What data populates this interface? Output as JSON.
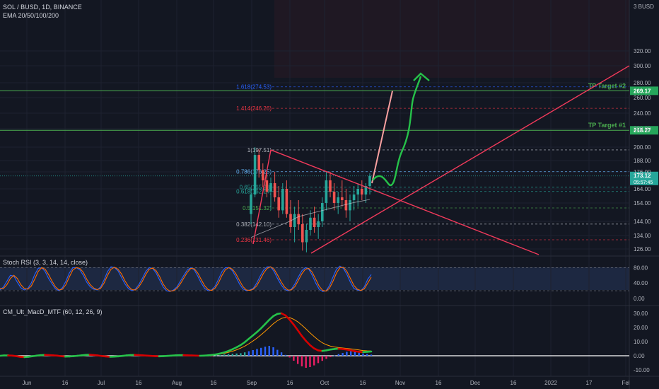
{
  "header": {
    "symbol_line": "SOL / BUSD, 1D, BINANCE",
    "indicator_line": "EMA 20/50/100/200",
    "currency": "3 BUSD"
  },
  "colors": {
    "background": "#131722",
    "grid": "#1e2230",
    "up_candle": "#26a69a",
    "down_candle": "#ef5350",
    "trendline": "#f23a5b",
    "tp_line": "#4caf50",
    "arrow": "#26c24a",
    "fib_dash": "#787b86"
  },
  "chart_data": [
    {
      "type": "candlestick",
      "name": "price_pane",
      "y_axis": {
        "ticks": [
          126.0,
          134.0,
          144.0,
          154.0,
          164.0,
          176.0,
          188.0,
          200.0,
          220.0,
          240.0,
          260.0,
          280.0,
          300.0,
          320.0
        ],
        "tick_labels": [
          "126.00",
          "134.00",
          "144.00",
          "154.00",
          "164.00",
          "176.00",
          "188.00",
          "200.00",
          "220.00",
          "240.00",
          "260.00",
          "280.00",
          "300.00",
          "320.00"
        ]
      },
      "x_axis": {
        "tick_labels": [
          "Jun",
          "16",
          "Jul",
          "16",
          "Aug",
          "16",
          "Sep",
          "16",
          "Oct",
          "16",
          "Nov",
          "16",
          "Dec",
          "16",
          "2022",
          "17",
          "Fel"
        ]
      },
      "current_price": "173.12",
      "countdown": "05:57:45",
      "tp_targets": [
        {
          "label": "TP Target #2",
          "value": 269.17,
          "value_label": "269.17"
        },
        {
          "label": "TP Target #1",
          "value": 218.27,
          "value_label": "218.27"
        }
      ],
      "fib_levels": [
        {
          "label": "1.618(274.53)",
          "value": 274.53,
          "color": "#2962ff"
        },
        {
          "label": "1.414(246.26)",
          "value": 246.26,
          "color": "#f23645"
        },
        {
          "label": "1(197.51)",
          "value": 197.51,
          "color": "#b2b5be"
        },
        {
          "label": "0.786(176.25)",
          "value": 176.25,
          "color": "#64b5f6"
        },
        {
          "label": "0.65(165.28)",
          "value": 165.28,
          "color": "#26a69a"
        },
        {
          "label": "0.618(162.14)",
          "value": 162.14,
          "color": "#26a69a"
        },
        {
          "label": "0.5(151.32)",
          "value": 151.32,
          "color": "#4caf50"
        },
        {
          "label": "0.382(142.10)",
          "value": 142.1,
          "color": "#b2b5be"
        },
        {
          "label": "0.236(131.46)",
          "value": 131.46,
          "color": "#f23645"
        }
      ],
      "candles": [
        {
          "o": 148,
          "h": 165,
          "l": 142,
          "c": 160
        },
        {
          "o": 160,
          "h": 200,
          "l": 158,
          "c": 193
        },
        {
          "o": 193,
          "h": 198,
          "l": 172,
          "c": 178
        },
        {
          "o": 178,
          "h": 185,
          "l": 165,
          "c": 170
        },
        {
          "o": 170,
          "h": 178,
          "l": 158,
          "c": 162
        },
        {
          "o": 162,
          "h": 172,
          "l": 150,
          "c": 168
        },
        {
          "o": 168,
          "h": 176,
          "l": 155,
          "c": 158
        },
        {
          "o": 158,
          "h": 166,
          "l": 146,
          "c": 150
        },
        {
          "o": 150,
          "h": 168,
          "l": 148,
          "c": 164
        },
        {
          "o": 164,
          "h": 170,
          "l": 146,
          "c": 148
        },
        {
          "o": 148,
          "h": 156,
          "l": 136,
          "c": 140
        },
        {
          "o": 140,
          "h": 152,
          "l": 130,
          "c": 148
        },
        {
          "o": 148,
          "h": 156,
          "l": 138,
          "c": 142
        },
        {
          "o": 142,
          "h": 148,
          "l": 125,
          "c": 130
        },
        {
          "o": 130,
          "h": 142,
          "l": 124,
          "c": 138
        },
        {
          "o": 138,
          "h": 150,
          "l": 134,
          "c": 146
        },
        {
          "o": 146,
          "h": 152,
          "l": 136,
          "c": 140
        },
        {
          "o": 140,
          "h": 148,
          "l": 132,
          "c": 144
        },
        {
          "o": 144,
          "h": 158,
          "l": 140,
          "c": 154
        },
        {
          "o": 154,
          "h": 176,
          "l": 150,
          "c": 170
        },
        {
          "o": 170,
          "h": 176,
          "l": 158,
          "c": 162
        },
        {
          "o": 162,
          "h": 168,
          "l": 150,
          "c": 154
        },
        {
          "o": 154,
          "h": 162,
          "l": 148,
          "c": 158
        },
        {
          "o": 158,
          "h": 170,
          "l": 152,
          "c": 156
        },
        {
          "o": 156,
          "h": 164,
          "l": 146,
          "c": 150
        },
        {
          "o": 150,
          "h": 160,
          "l": 144,
          "c": 156
        },
        {
          "o": 156,
          "h": 166,
          "l": 150,
          "c": 160
        },
        {
          "o": 160,
          "h": 168,
          "l": 152,
          "c": 164
        },
        {
          "o": 164,
          "h": 170,
          "l": 156,
          "c": 160
        },
        {
          "o": 160,
          "h": 168,
          "l": 154,
          "c": 166
        },
        {
          "o": 166,
          "h": 175,
          "l": 160,
          "c": 173.12
        }
      ]
    },
    {
      "type": "line",
      "name": "Stoch RSI (3, 3, 14, 14, close)",
      "y_axis": {
        "ticks": [
          0,
          40,
          80
        ],
        "tick_labels": [
          "0.00",
          "40.00",
          "80.00"
        ]
      },
      "bands": [
        20,
        80
      ],
      "series": [
        {
          "values": [
            22,
            30,
            45,
            60,
            58,
            42,
            28,
            22,
            26,
            40,
            62,
            78,
            80,
            70,
            52,
            38,
            25,
            20,
            28,
            45,
            66,
            80,
            80,
            74,
            60,
            42,
            30,
            24,
            22,
            30,
            48,
            70,
            82,
            80,
            72,
            55,
            38,
            26,
            20,
            24,
            36,
            52,
            70,
            80,
            78,
            66,
            48,
            30,
            20,
            18,
            22,
            30,
            45,
            60,
            74,
            80,
            74,
            58,
            40,
            26,
            20,
            22,
            32,
            50,
            70,
            80,
            80,
            72,
            56,
            38,
            25,
            20,
            22,
            26,
            40,
            58,
            74,
            82,
            82,
            70,
            52,
            36,
            24,
            20,
            24,
            38,
            56,
            72,
            80,
            76,
            60,
            40,
            24,
            18,
            20,
            34,
            56,
            76,
            84,
            78,
            62,
            42,
            26,
            22,
            20,
            30,
            50,
            62
          ]
        },
        {
          "values": [
            26,
            26,
            36,
            52,
            60,
            52,
            36,
            26,
            24,
            32,
            50,
            70,
            80,
            76,
            62,
            45,
            30,
            22,
            24,
            36,
            56,
            74,
            80,
            78,
            68,
            50,
            36,
            27,
            23,
            26,
            40,
            60,
            76,
            81,
            76,
            64,
            46,
            32,
            23,
            22,
            30,
            44,
            62,
            76,
            79,
            72,
            57,
            38,
            25,
            19,
            20,
            26,
            38,
            53,
            68,
            78,
            77,
            66,
            49,
            33,
            23,
            21,
            27,
            41,
            60,
            75,
            80,
            76,
            64,
            47,
            31,
            22,
            21,
            24,
            33,
            49,
            66,
            78,
            82,
            76,
            61,
            44,
            30,
            22,
            22,
            31,
            47,
            64,
            76,
            78,
            68,
            50,
            32,
            21,
            19,
            27,
            45,
            66,
            80,
            81,
            70,
            52,
            34,
            24,
            21,
            25,
            40,
            55
          ]
        }
      ]
    },
    {
      "type": "bar",
      "name": "CM_Ult_MacD_MTF (60, 12, 26, 9)",
      "y_axis": {
        "ticks": [
          -10,
          0,
          10,
          20,
          30
        ],
        "tick_labels": [
          "-10.00",
          "0.00",
          "10.00",
          "20.00",
          "30.00"
        ]
      },
      "series": [
        {
          "name": "histogram",
          "values": [
            0.3,
            0.6,
            0.9,
            0.7,
            0.3,
            -0.3,
            -0.6,
            -0.8,
            -0.5,
            -0.2,
            0.2,
            0.4,
            0.6,
            0.5,
            0.2,
            -0.2,
            -0.5,
            -0.6,
            -0.4,
            -0.1,
            0.2,
            0.5,
            0.8,
            0.6,
            0.3,
            -0.1,
            -0.4,
            -0.7,
            -0.9,
            -0.6,
            -0.3,
            0.2,
            0.5,
            0.7,
            0.5,
            0.3,
            0.1,
            -0.2,
            -0.4,
            -0.6,
            -0.4,
            -0.2,
            0.1,
            0.4,
            0.6,
            0.5,
            0.3,
            0.1,
            -0.1,
            -0.3,
            -0.4,
            -0.3,
            -0.1,
            0.2,
            0.5,
            0.9,
            1.2,
            1.4,
            1.6,
            1.8,
            2.4,
            3.2,
            4.0,
            4.8,
            5.6,
            6.4,
            7.0,
            6.0,
            4.2,
            2.4,
            0.6,
            -1.2,
            -3.5,
            -5.8,
            -7.5,
            -8.5,
            -8.0,
            -6.8,
            -5.2,
            -3.6,
            -2.2,
            -1.0,
            0.2,
            1.2,
            2.0,
            2.8,
            3.2,
            2.8,
            2.2,
            1.6,
            1.2,
            0.8
          ]
        },
        {
          "name": "macd",
          "values": [
            0.0,
            0.2,
            0.2,
            0.1,
            -0.3,
            -0.8,
            -1.0,
            -0.7,
            -0.3,
            0.1,
            0.4,
            0.6,
            0.5,
            0.3,
            0.1,
            -0.3,
            -0.6,
            -0.5,
            -0.3,
            0.0,
            0.3,
            0.6,
            0.7,
            0.5,
            0.2,
            -0.2,
            -0.5,
            -0.7,
            -0.6,
            -0.4,
            -0.1,
            0.2,
            0.5,
            0.6,
            0.5,
            0.3,
            0.1,
            -0.1,
            -0.3,
            -0.4,
            -0.3,
            -0.1,
            0.1,
            0.3,
            0.4,
            0.4,
            0.3,
            0.2,
            0.1,
            0.0,
            0.1,
            0.3,
            0.6,
            1.0,
            1.6,
            2.4,
            3.4,
            4.6,
            6.0,
            7.6,
            9.6,
            12.0,
            14.4,
            16.8,
            19.4,
            22.4,
            25.4,
            28.0,
            29.6,
            30.0,
            28.5,
            25.5,
            22.0,
            18.0,
            14.0,
            10.5,
            7.5,
            5.2,
            3.8,
            3.4,
            3.8,
            4.4,
            4.8,
            5.0,
            4.8,
            4.4,
            3.8,
            3.2,
            2.8,
            2.6,
            2.8,
            3.0
          ]
        },
        {
          "name": "signal",
          "values": [
            0.0,
            0.1,
            0.1,
            0.1,
            0.0,
            -0.2,
            -0.4,
            -0.5,
            -0.4,
            -0.2,
            0.0,
            0.2,
            0.3,
            0.3,
            0.2,
            0.0,
            -0.2,
            -0.3,
            -0.3,
            -0.2,
            0.0,
            0.2,
            0.4,
            0.4,
            0.3,
            0.1,
            -0.1,
            -0.3,
            -0.4,
            -0.4,
            -0.3,
            -0.1,
            0.1,
            0.3,
            0.4,
            0.3,
            0.2,
            0.1,
            0.0,
            -0.1,
            -0.2,
            -0.2,
            -0.1,
            0.0,
            0.1,
            0.2,
            0.2,
            0.2,
            0.1,
            0.1,
            0.2,
            0.3,
            0.5,
            0.8,
            1.2,
            1.7,
            2.4,
            3.2,
            4.2,
            5.4,
            6.8,
            8.5,
            10.4,
            12.5,
            14.8,
            17.3,
            20.0,
            22.6,
            24.8,
            26.4,
            27.2,
            27.0,
            25.8,
            24.0,
            21.6,
            19.0,
            16.2,
            13.6,
            11.2,
            9.2,
            7.8,
            6.8,
            6.2,
            5.8,
            5.5,
            5.2,
            4.9,
            4.5,
            4.1,
            3.7,
            3.5,
            3.4
          ]
        }
      ]
    }
  ]
}
